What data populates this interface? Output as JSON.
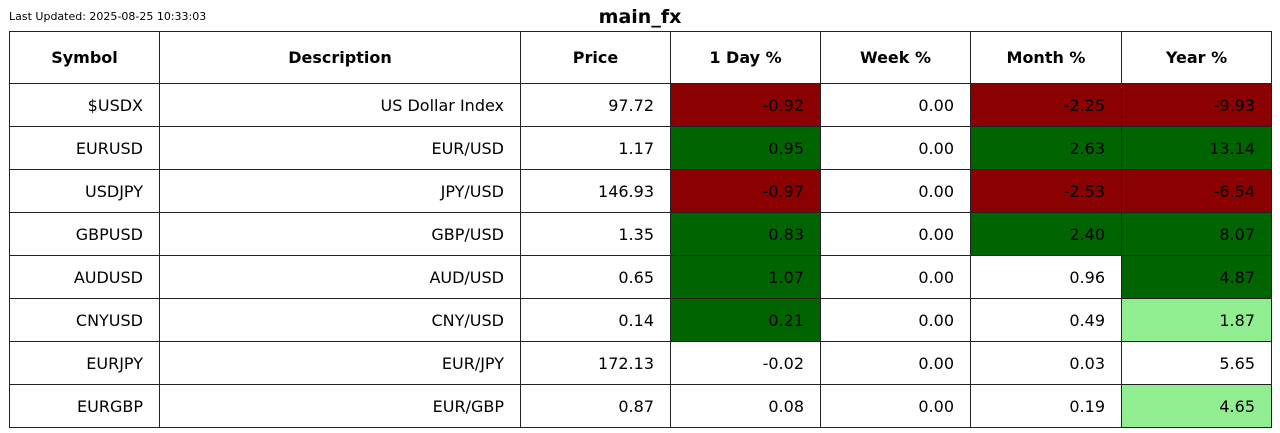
{
  "last_updated": "Last Updated: 2025-08-25 10:33:03",
  "colors": {
    "strong_negative": "#8b0000",
    "strong_positive": "#006400",
    "mild_positive": "#90ee90",
    "neutral": "#ffffff"
  },
  "chart_data": {
    "type": "table",
    "title": "main_fx",
    "columns": [
      "Symbol",
      "Description",
      "Price",
      "1 Day %",
      "Week %",
      "Month %",
      "Year %"
    ],
    "rows": [
      {
        "symbol": "$USDX",
        "description": "US Dollar Index",
        "price": "97.72",
        "day": "-0.92",
        "week": "0.00",
        "month": "-2.25",
        "year": "-9.93"
      },
      {
        "symbol": "EURUSD",
        "description": "EUR/USD",
        "price": "1.17",
        "day": "0.95",
        "week": "0.00",
        "month": "2.63",
        "year": "13.14"
      },
      {
        "symbol": "USDJPY",
        "description": "JPY/USD",
        "price": "146.93",
        "day": "-0.97",
        "week": "0.00",
        "month": "-2.53",
        "year": "-6.54"
      },
      {
        "symbol": "GBPUSD",
        "description": "GBP/USD",
        "price": "1.35",
        "day": "0.83",
        "week": "0.00",
        "month": "2.40",
        "year": "8.07"
      },
      {
        "symbol": "AUDUSD",
        "description": "AUD/USD",
        "price": "0.65",
        "day": "1.07",
        "week": "0.00",
        "month": "0.96",
        "year": "4.87"
      },
      {
        "symbol": "CNYUSD",
        "description": "CNY/USD",
        "price": "0.14",
        "day": "0.21",
        "week": "0.00",
        "month": "0.49",
        "year": "1.87"
      },
      {
        "symbol": "EURJPY",
        "description": "EUR/JPY",
        "price": "172.13",
        "day": "-0.02",
        "week": "0.00",
        "month": "0.03",
        "year": "5.65"
      },
      {
        "symbol": "EURGBP",
        "description": "EUR/GBP",
        "price": "0.87",
        "day": "0.08",
        "week": "0.00",
        "month": "0.19",
        "year": "4.65"
      }
    ],
    "cell_colors": {
      "day": [
        "strong_negative",
        "strong_positive",
        "strong_negative",
        "strong_positive",
        "strong_positive",
        "strong_positive",
        "neutral",
        "neutral"
      ],
      "week": [
        "neutral",
        "neutral",
        "neutral",
        "neutral",
        "neutral",
        "neutral",
        "neutral",
        "neutral"
      ],
      "month": [
        "strong_negative",
        "strong_positive",
        "strong_negative",
        "strong_positive",
        "neutral",
        "neutral",
        "neutral",
        "neutral"
      ],
      "year": [
        "strong_negative",
        "strong_positive",
        "strong_negative",
        "strong_positive",
        "strong_positive",
        "mild_positive",
        "neutral",
        "mild_positive"
      ]
    }
  }
}
